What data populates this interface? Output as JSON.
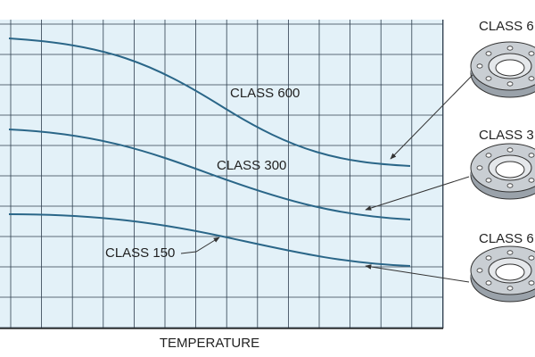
{
  "curve_labels": [
    "CLASS 600",
    "CLASS 300",
    "CLASS 150"
  ],
  "x_axis_label": "TEMPERATURE",
  "flange_labels": [
    "CLASS 6",
    "CLASS 3",
    "CLASS 6"
  ]
}
